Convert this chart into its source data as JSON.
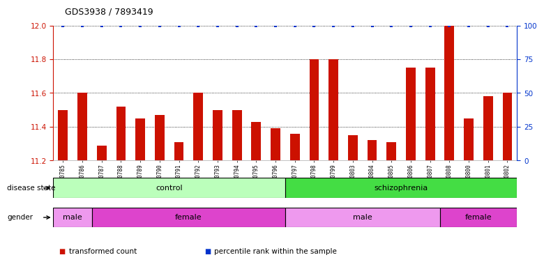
{
  "title": "GDS3938 / 7893419",
  "samples": [
    "GSM630785",
    "GSM630786",
    "GSM630787",
    "GSM630788",
    "GSM630789",
    "GSM630790",
    "GSM630791",
    "GSM630792",
    "GSM630793",
    "GSM630794",
    "GSM630795",
    "GSM630796",
    "GSM630797",
    "GSM630798",
    "GSM630799",
    "GSM630803",
    "GSM630804",
    "GSM630805",
    "GSM630806",
    "GSM630807",
    "GSM630808",
    "GSM630800",
    "GSM630801",
    "GSM630802"
  ],
  "bar_values": [
    11.5,
    11.6,
    11.29,
    11.52,
    11.45,
    11.47,
    11.31,
    11.6,
    11.5,
    11.5,
    11.43,
    11.39,
    11.36,
    11.8,
    11.8,
    11.35,
    11.32,
    11.31,
    11.75,
    11.75,
    12.0,
    11.45,
    11.58,
    11.6
  ],
  "percentile_values": [
    100,
    100,
    100,
    100,
    100,
    100,
    100,
    100,
    100,
    100,
    100,
    100,
    100,
    100,
    100,
    100,
    100,
    100,
    100,
    100,
    100,
    100,
    100,
    100
  ],
  "bar_color": "#cc1100",
  "percentile_color": "#0033cc",
  "ylim_left": [
    11.2,
    12.0
  ],
  "ylim_right": [
    0,
    100
  ],
  "yticks_left": [
    11.2,
    11.4,
    11.6,
    11.8,
    12.0
  ],
  "yticks_right": [
    0,
    25,
    50,
    75,
    100
  ],
  "disease_state_groups": [
    {
      "label": "control",
      "start": 0,
      "end": 12,
      "color": "#bbffbb"
    },
    {
      "label": "schizophrenia",
      "start": 12,
      "end": 24,
      "color": "#44dd44"
    }
  ],
  "gender_groups": [
    {
      "label": "male",
      "start": 0,
      "end": 2,
      "color": "#ee99ee"
    },
    {
      "label": "female",
      "start": 2,
      "end": 12,
      "color": "#dd44cc"
    },
    {
      "label": "male",
      "start": 12,
      "end": 20,
      "color": "#ee99ee"
    },
    {
      "label": "female",
      "start": 20,
      "end": 24,
      "color": "#dd44cc"
    }
  ],
  "legend_items": [
    {
      "label": "transformed count",
      "color": "#cc1100"
    },
    {
      "label": "percentile rank within the sample",
      "color": "#0033cc"
    }
  ],
  "disease_label": "disease state",
  "gender_label": "gender",
  "left_axis_color": "#cc1100",
  "right_axis_color": "#0033cc",
  "fig_width": 8.01,
  "fig_height": 3.84,
  "dpi": 100
}
